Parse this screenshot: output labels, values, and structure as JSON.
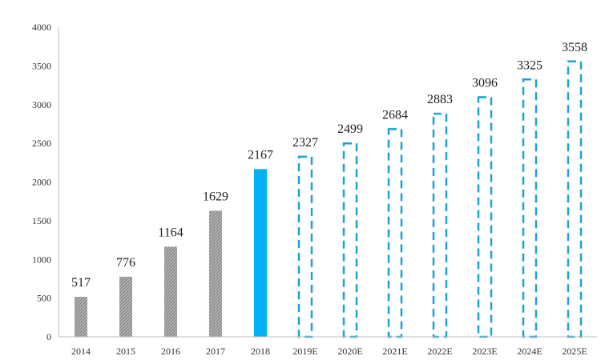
{
  "chart_data": {
    "type": "bar",
    "title": "",
    "xlabel": "",
    "ylabel": "",
    "ylim": [
      0,
      4000
    ],
    "yticks": [
      0,
      500,
      1000,
      1500,
      2000,
      2500,
      3000,
      3500,
      4000
    ],
    "grid": false,
    "legend": "none",
    "categories": [
      "2014",
      "2015",
      "2016",
      "2017",
      "2018",
      "2019E",
      "2020E",
      "2021E",
      "2022E",
      "2023E",
      "2024E",
      "2025E"
    ],
    "values": [
      517,
      776,
      1164,
      1629,
      2167,
      2327,
      2499,
      2684,
      2883,
      3096,
      3325,
      3558
    ],
    "bar_styles": [
      "hatched-gray",
      "hatched-gray",
      "hatched-gray",
      "hatched-gray",
      "solid-blue",
      "dashed-outline",
      "dashed-outline",
      "dashed-outline",
      "dashed-outline",
      "dashed-outline",
      "dashed-outline",
      "dashed-outline"
    ],
    "colors": {
      "historical": "#a6a6a6",
      "current": "#00b0f0",
      "forecast_outline": "#1aa3d4",
      "axis": "#bfbfbf"
    }
  }
}
